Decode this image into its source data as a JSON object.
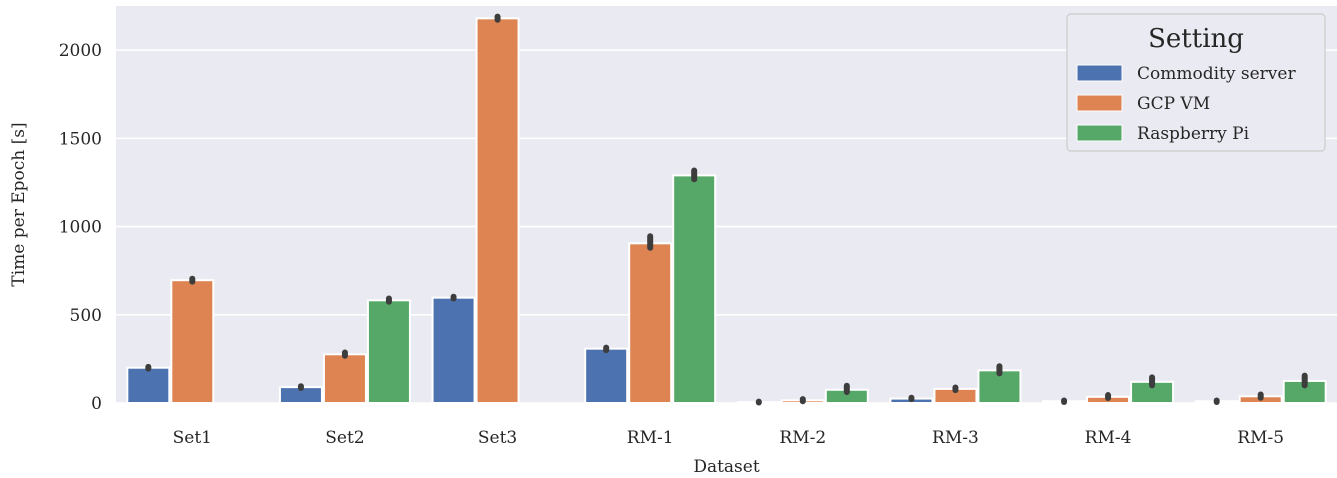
{
  "chart_data": {
    "type": "bar",
    "xlabel": "Dataset",
    "ylabel": "Time per Epoch [s]",
    "ylim": [
      0,
      2250
    ],
    "yticks": [
      0,
      500,
      1000,
      1500,
      2000
    ],
    "grid": true,
    "legend": {
      "title": "Setting",
      "placement": "top-right"
    },
    "categories": [
      "Set1",
      "Set2",
      "Set3",
      "RM-1",
      "RM-2",
      "RM-3",
      "RM-4",
      "RM-5"
    ],
    "series": [
      {
        "name": "Commodity server",
        "color": "#4c72b0",
        "values": [
          200,
          90,
          597,
          308,
          5,
          25,
          10,
          10
        ],
        "error": [
          [
            195,
            205
          ],
          [
            85,
            95
          ],
          [
            592,
            602
          ],
          [
            300,
            314
          ],
          [
            3,
            8
          ],
          [
            22,
            30
          ],
          [
            6,
            14
          ],
          [
            6,
            14
          ]
        ]
      },
      {
        "name": "GCP VM",
        "color": "#dd8452",
        "values": [
          696,
          276,
          2180,
          905,
          15,
          80,
          35,
          38
        ],
        "error": [
          [
            688,
            704
          ],
          [
            268,
            286
          ],
          [
            2172,
            2190
          ],
          [
            880,
            945
          ],
          [
            10,
            22
          ],
          [
            73,
            88
          ],
          [
            28,
            45
          ],
          [
            30,
            48
          ]
        ]
      },
      {
        "name": "Raspberry Pi",
        "color": "#55a868",
        "values": [
          null,
          582,
          null,
          1290,
          75,
          185,
          120,
          125
        ],
        "error": [
          null,
          [
            574,
            592
          ],
          null,
          [
            1268,
            1318
          ],
          [
            62,
            98
          ],
          [
            168,
            208
          ],
          [
            100,
            145
          ],
          [
            100,
            155
          ]
        ]
      }
    ]
  }
}
